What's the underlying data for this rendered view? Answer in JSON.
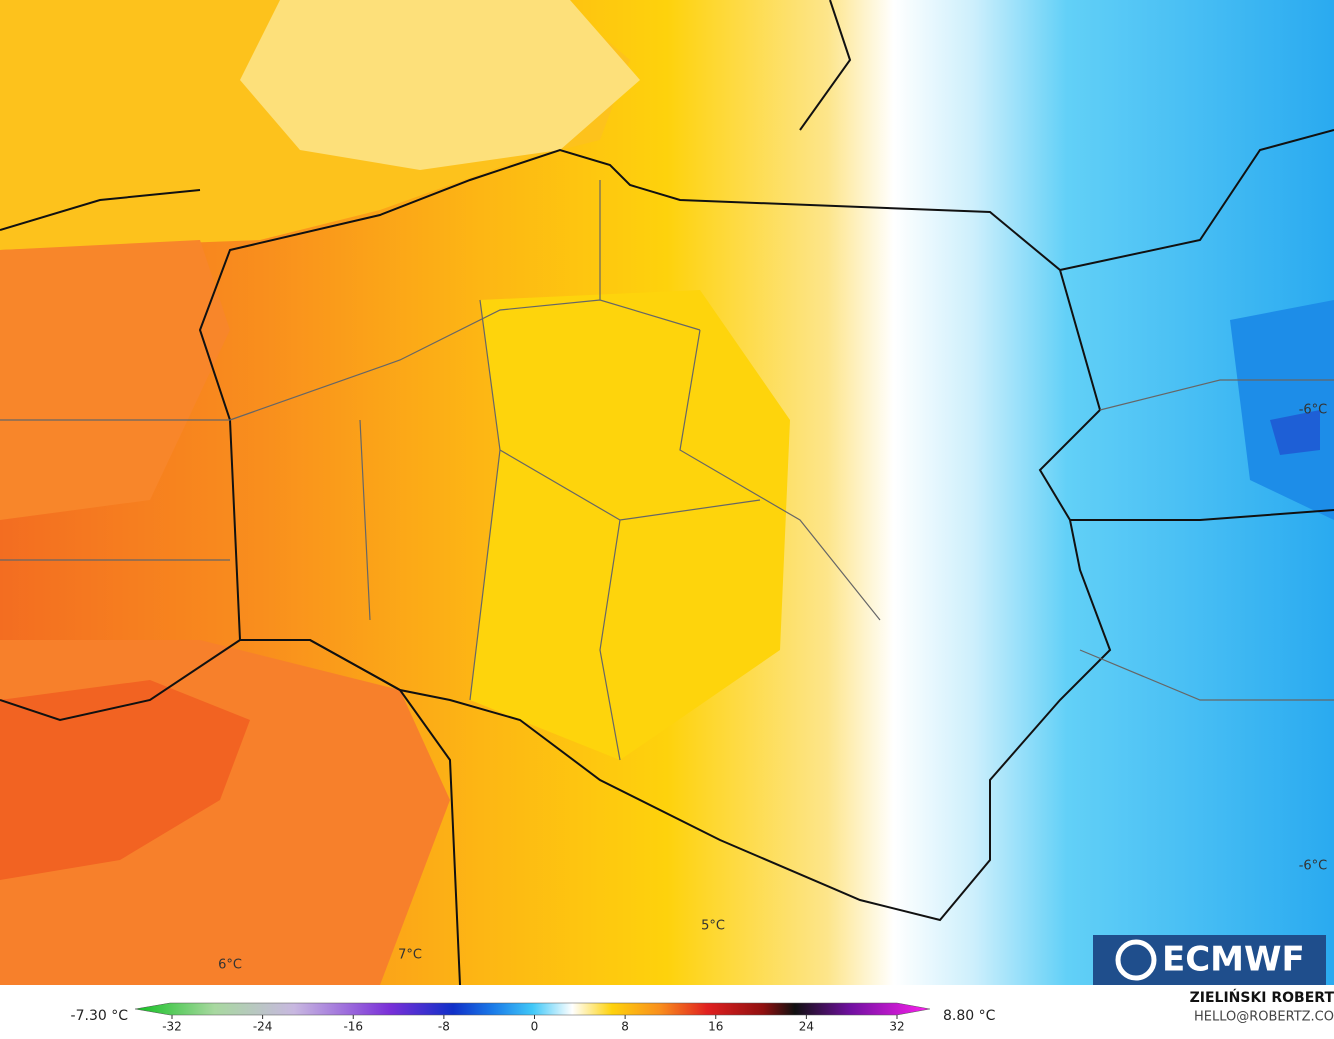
{
  "map": {
    "labels": [
      "-6°C",
      "-6°C",
      "5°C",
      "6°C",
      "7°C"
    ]
  },
  "colorbar": {
    "min_label": "-7.30 °C",
    "max_label": "8.80 °C",
    "ticks": [
      -32,
      -24,
      -16,
      -8,
      0,
      8,
      16,
      24,
      32
    ]
  },
  "logo": "ECMWF",
  "credits": {
    "author": "ZIELIŃSKI ROBERT",
    "email": "HELLO@ROBERTZ.CO"
  }
}
